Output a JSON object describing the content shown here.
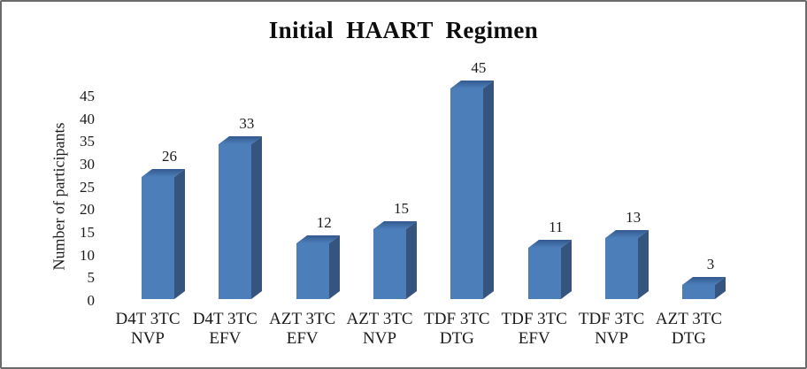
{
  "window": {
    "border_color": "#6a6a6a",
    "background": "#ffffff"
  },
  "chart_data": {
    "type": "bar",
    "style": "3d-box",
    "title": "Initial HAART Regimen",
    "xlabel": "",
    "ylabel": "Number of participants",
    "categories": [
      {
        "line1": "D4T 3TC",
        "line2": "NVP"
      },
      {
        "line1": "D4T 3TC",
        "line2": "EFV"
      },
      {
        "line1": "AZT 3TC",
        "line2": "EFV"
      },
      {
        "line1": "AZT 3TC",
        "line2": "NVP"
      },
      {
        "line1": "TDF 3TC",
        "line2": "DTG"
      },
      {
        "line1": "TDF 3TC",
        "line2": "EFV"
      },
      {
        "line1": "TDF 3TC",
        "line2": "NVP"
      },
      {
        "line1": "AZT 3TC",
        "line2": "DTG"
      }
    ],
    "values": [
      26,
      33,
      12,
      15,
      45,
      11,
      13,
      3
    ],
    "data_labels": [
      26,
      33,
      12,
      15,
      45,
      11,
      13,
      3
    ],
    "yticks": [
      0,
      5,
      10,
      15,
      20,
      25,
      30,
      35,
      40,
      45
    ],
    "ylim": [
      0,
      45
    ],
    "grid": false,
    "legend": false,
    "colors": {
      "bar_front": "#4C7EBA",
      "bar_side": "#35547E",
      "bar_top_back": "#33598F",
      "bar_top_front": "#4D7EB9",
      "text": "#1a1a1a"
    }
  }
}
